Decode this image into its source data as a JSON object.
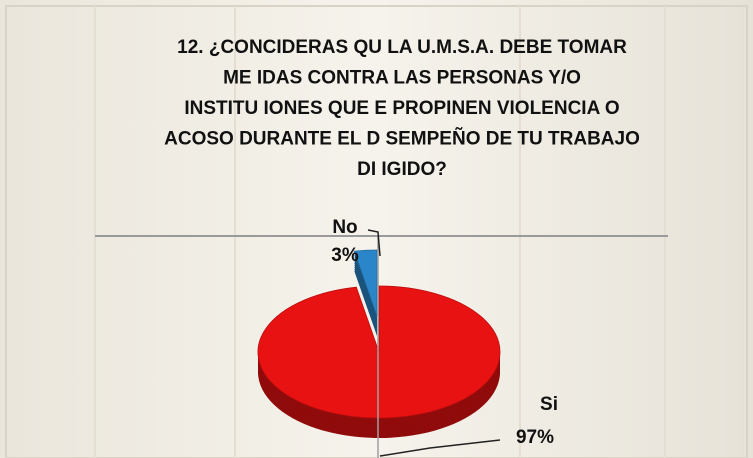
{
  "chart_data": {
    "type": "pie",
    "title": [
      "12. ¿CONCIDERAS QU   LA U.M.S.A. DEBE TOMAR",
      "ME   IDAS CONTRA LAS PERSONAS Y/O",
      "INSTITU   IONES QUE   E PROPINEN VIOLENCIA O",
      "ACOSO DURANTE EL D   SEMPEÑO DE TU TRABAJO",
      "DI   IGIDO?"
    ],
    "categories": [
      "No",
      "Si"
    ],
    "values": [
      3,
      97
    ],
    "value_labels": [
      "3%",
      "97%"
    ],
    "colors": [
      "#2a86c8",
      "#e81212"
    ]
  }
}
